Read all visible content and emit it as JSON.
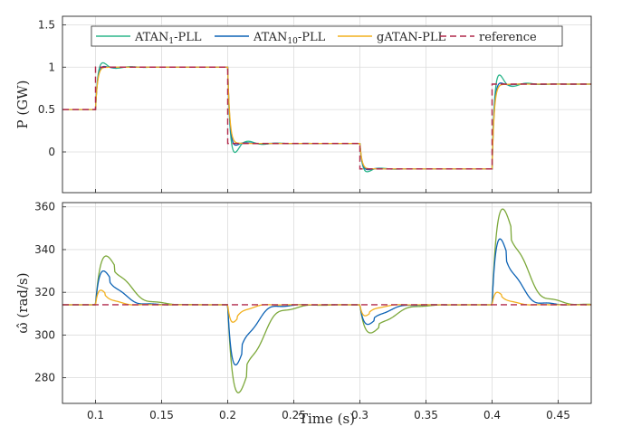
{
  "chart_data": [
    {
      "type": "line",
      "ylabel": "P (GW)",
      "xlabel": "",
      "xlim": [
        0.075,
        0.475
      ],
      "ylim": [
        -0.48,
        1.6
      ],
      "xticks": [
        "0.1",
        "0.15",
        "0.2",
        "0.25",
        "0.3",
        "0.35",
        "0.4",
        "0.45"
      ],
      "yticks": [
        "0",
        "0.5",
        "1",
        "1.5"
      ],
      "grid": true,
      "legend": {
        "position": "top",
        "orientation": "horizontal"
      },
      "steps": [
        {
          "t": 0.1,
          "from": 0.5,
          "to": 1.0
        },
        {
          "t": 0.2,
          "from": 1.0,
          "to": 0.1
        },
        {
          "t": 0.3,
          "from": 0.1,
          "to": -0.2
        },
        {
          "t": 0.4,
          "from": -0.2,
          "to": 0.8
        }
      ],
      "series": [
        {
          "name": "ATAN1-PLL",
          "name_main": "ATAN",
          "name_sub": "1",
          "name_suffix": "-PLL",
          "color": "#2bb58a",
          "style": "solid",
          "peak_overshoot": [
            0.14,
            -0.28,
            -0.09,
            0.29
          ],
          "decay_tau": 0.0075,
          "period": 0.022
        },
        {
          "name": "ATAN10-PLL",
          "name_main": "ATAN",
          "name_sub": "10",
          "name_suffix": "-PLL",
          "color": "#0d63b5",
          "style": "solid",
          "peak_overshoot": [
            0.06,
            -0.13,
            -0.05,
            0.11
          ],
          "decay_tau": 0.0055,
          "period": 0.02
        },
        {
          "name": "gATAN-PLL",
          "name_main": "gATAN-PLL",
          "name_sub": "",
          "name_suffix": "",
          "color": "#f2b01e",
          "style": "solid",
          "peak_overshoot": [
            0.03,
            -0.04,
            -0.02,
            0.04
          ],
          "decay_tau": 0.004,
          "period": 0.018
        },
        {
          "name": "reference",
          "name_main": "reference",
          "name_sub": "",
          "name_suffix": "",
          "color": "#b0284a",
          "style": "dashed"
        }
      ]
    },
    {
      "type": "line",
      "ylabel": "ω̂ (rad/s)",
      "xlabel": "Time (s)",
      "xlim": [
        0.075,
        0.475
      ],
      "ylim": [
        268,
        362
      ],
      "xticks": [
        "0.1",
        "0.15",
        "0.2",
        "0.25",
        "0.3",
        "0.35",
        "0.4",
        "0.45"
      ],
      "yticks": [
        "280",
        "300",
        "320",
        "340",
        "360"
      ],
      "grid": true,
      "baseline": 314.16,
      "events": [
        0.1,
        0.2,
        0.3,
        0.4
      ],
      "series": [
        {
          "name": "ATAN1-PLL",
          "color": "#7ca83a",
          "peaks": [
            337,
            273,
            301,
            359
          ],
          "tpeak": 0.008,
          "decay_tau": 0.007,
          "period": 0.024
        },
        {
          "name": "ATAN10-PLL",
          "color": "#0d63b5",
          "peaks": [
            330,
            286,
            305,
            345
          ],
          "tpeak": 0.006,
          "decay_tau": 0.006,
          "period": 0.022
        },
        {
          "name": "gATAN-PLL",
          "color": "#f2b01e",
          "peaks": [
            321,
            306,
            309,
            320
          ],
          "tpeak": 0.004,
          "decay_tau": 0.005,
          "period": 0.02
        },
        {
          "name": "reference",
          "color": "#b0284a",
          "style": "dashed",
          "value": 314.16
        }
      ]
    }
  ]
}
